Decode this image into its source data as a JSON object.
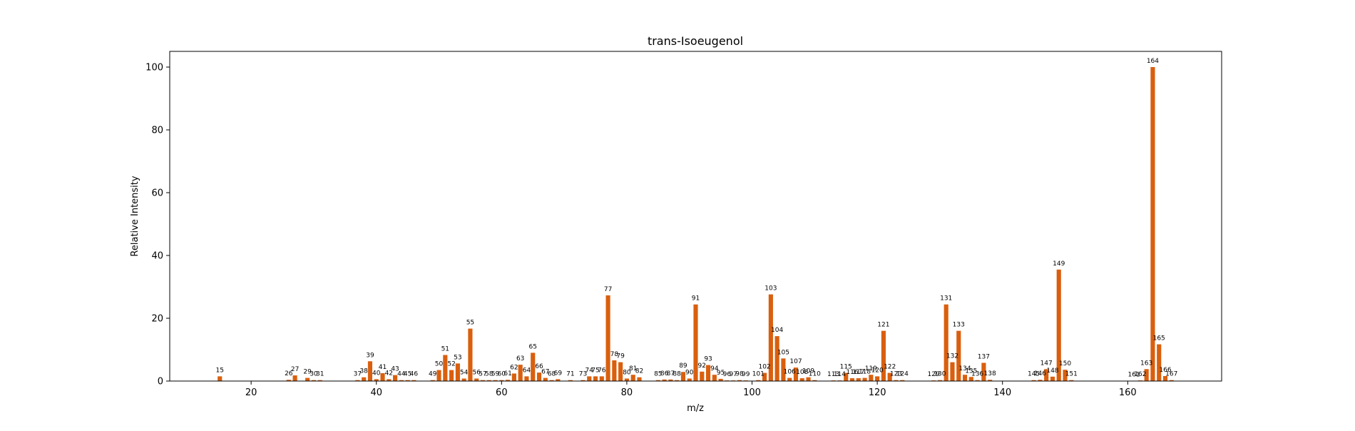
{
  "chart_data": {
    "type": "bar",
    "title": "trans-Isoeugenol",
    "xlabel": "m/z",
    "ylabel": "Relative Intensity",
    "xlim": [
      7,
      175
    ],
    "ylim": [
      0,
      105
    ],
    "xticks": [
      20,
      40,
      60,
      80,
      100,
      120,
      140,
      160
    ],
    "yticks": [
      0,
      20,
      40,
      60,
      80,
      100
    ],
    "grid": false,
    "bar_color": "#d95f0e",
    "x": [
      15,
      26,
      27,
      29,
      30,
      31,
      37,
      38,
      39,
      40,
      41,
      42,
      43,
      44,
      45,
      46,
      49,
      50,
      51,
      52,
      53,
      54,
      55,
      56,
      57,
      58,
      59,
      60,
      61,
      62,
      63,
      64,
      65,
      66,
      67,
      68,
      69,
      71,
      73,
      74,
      75,
      76,
      77,
      78,
      79,
      80,
      81,
      82,
      85,
      86,
      87,
      88,
      89,
      90,
      91,
      92,
      93,
      94,
      95,
      96,
      97,
      98,
      99,
      101,
      102,
      103,
      104,
      105,
      106,
      107,
      108,
      109,
      110,
      113,
      114,
      115,
      116,
      117,
      118,
      119,
      120,
      121,
      122,
      123,
      124,
      129,
      130,
      131,
      132,
      133,
      134,
      135,
      136,
      137,
      138,
      145,
      146,
      147,
      148,
      149,
      150,
      151,
      161,
      162,
      163,
      164,
      165,
      166,
      167
    ],
    "values": [
      1.5,
      0.4,
      1.8,
      1.0,
      0.3,
      0.3,
      0.3,
      1.2,
      6.3,
      0.6,
      2.5,
      0.6,
      1.9,
      0.3,
      0.3,
      0.3,
      0.3,
      3.5,
      8.3,
      3.5,
      5.6,
      0.8,
      16.7,
      0.8,
      0.3,
      0.3,
      0.3,
      0.3,
      0.4,
      2.4,
      5.2,
      1.5,
      9.0,
      2.7,
      1.0,
      0.3,
      0.6,
      0.3,
      0.3,
      1.5,
      1.5,
      1.5,
      27.3,
      6.6,
      6.0,
      0.8,
      2.0,
      1.2,
      0.3,
      0.5,
      0.5,
      0.3,
      2.9,
      0.8,
      24.4,
      3.0,
      5.1,
      2.0,
      0.7,
      0.2,
      0.2,
      0.3,
      0.2,
      0.3,
      2.6,
      27.6,
      14.3,
      7.2,
      1.0,
      4.3,
      0.9,
      1.2,
      0.3,
      0.2,
      0.2,
      2.6,
      0.9,
      0.9,
      1.0,
      2.0,
      1.5,
      16.0,
      2.6,
      0.3,
      0.3,
      0.2,
      0.3,
      24.4,
      6.0,
      16.0,
      2.0,
      1.3,
      0.3,
      5.8,
      0.4,
      0.3,
      0.4,
      3.8,
      1.4,
      35.5,
      3.6,
      0.3,
      0.1,
      0.2,
      3.8,
      100.0,
      11.7,
      1.6,
      0.3
    ]
  }
}
